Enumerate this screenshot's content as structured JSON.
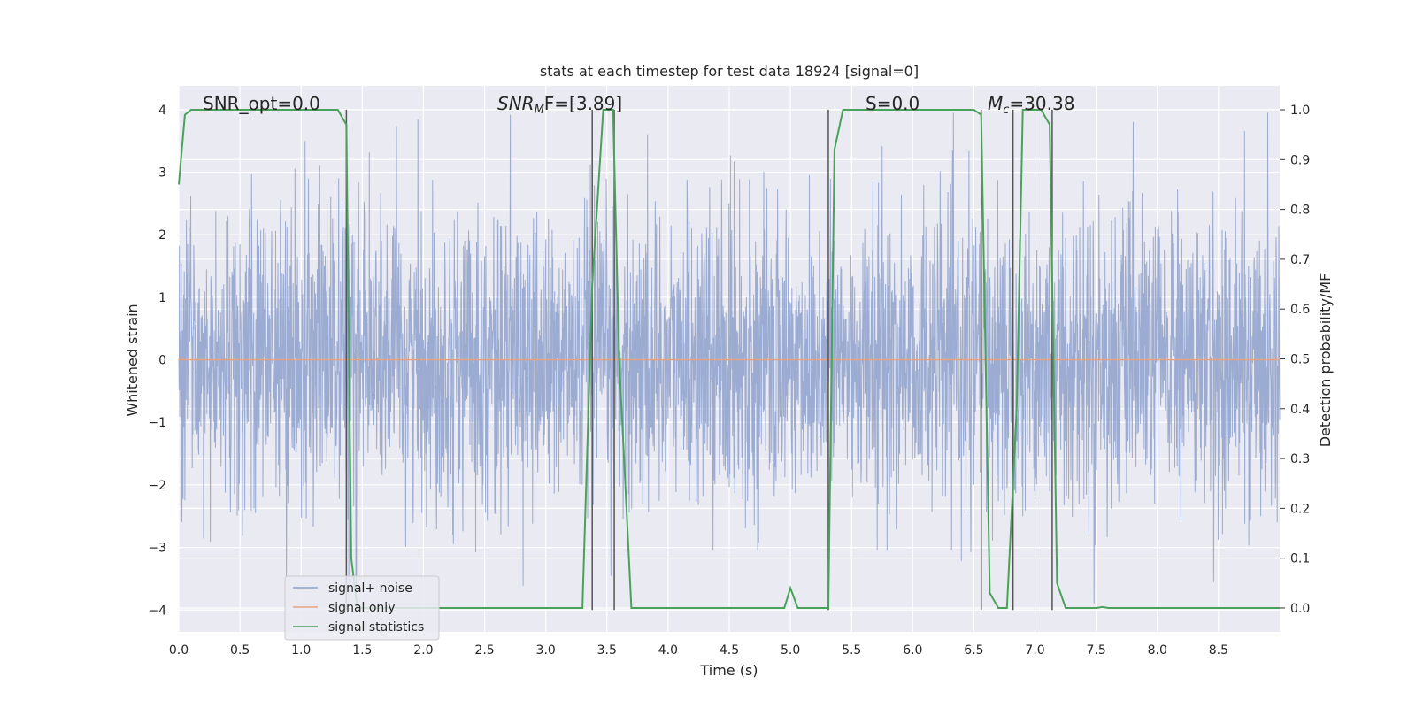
{
  "chart_data": {
    "type": "line",
    "title": "stats at each timestep for test data 18924 [signal=0]",
    "xlabel": "Time (s)",
    "ylabel_left": "Whitened strain",
    "ylabel_right": "Detection probability/MF",
    "xlim": [
      0,
      9.0
    ],
    "ylim_left": [
      -4.35,
      4.38
    ],
    "ylim_right": [
      -0.048,
      1.048
    ],
    "grid": true,
    "x_ticks": [
      0.0,
      0.5,
      1.0,
      1.5,
      2.0,
      2.5,
      3.0,
      3.5,
      4.0,
      4.5,
      5.0,
      5.5,
      6.0,
      6.5,
      7.0,
      7.5,
      8.0,
      8.5
    ],
    "x_tick_labels": [
      "0.0",
      "0.5",
      "1.0",
      "1.5",
      "2.0",
      "2.5",
      "3.0",
      "3.5",
      "4.0",
      "4.5",
      "5.0",
      "5.5",
      "6.0",
      "6.5",
      "7.0",
      "7.5",
      "8.0",
      "8.5"
    ],
    "y_left_ticks": [
      -4,
      -3,
      -2,
      -1,
      0,
      1,
      2,
      3,
      4
    ],
    "y_left_tick_labels": [
      "−4",
      "−3",
      "−2",
      "−1",
      "0",
      "1",
      "2",
      "3",
      "4"
    ],
    "y_right_ticks": [
      0.0,
      0.1,
      0.2,
      0.3,
      0.4,
      0.5,
      0.6,
      0.7,
      0.8,
      0.9,
      1.0
    ],
    "y_right_tick_labels": [
      "0.0",
      "0.1",
      "0.2",
      "0.3",
      "0.4",
      "0.5",
      "0.6",
      "0.7",
      "0.8",
      "0.9",
      "1.0"
    ],
    "annotations": [
      "SNR_opt=0.0",
      "SNR",
      "M",
      "F=[3.89]",
      "S=0.0",
      "M",
      "c",
      "=30.38"
    ],
    "legend": {
      "placement": "lower-left",
      "entries": [
        {
          "label": "signal+ noise",
          "color": "#8da0cb"
        },
        {
          "label": "signal only",
          "color": "#e8a07f"
        },
        {
          "label": "signal statistics",
          "color": "#4aa25a"
        }
      ]
    },
    "series": [
      {
        "name": "signal+ noise",
        "axis": "left",
        "color": "#8da0cb",
        "kind": "whitened noise trace (approx. N(0,1) per sample, peaks ≈ ±4)",
        "sample_rate_hz": 400,
        "duration_s": 9.0
      },
      {
        "name": "signal only",
        "axis": "left",
        "color": "#e8a07f",
        "x": [
          0.0,
          9.0
        ],
        "y": [
          0.0,
          0.0
        ]
      },
      {
        "name": "signal statistics",
        "axis": "right",
        "color": "#4aa25a",
        "x": [
          0.0,
          0.05,
          0.1,
          1.3,
          1.37,
          1.41,
          1.46,
          3.3,
          3.38,
          3.47,
          3.55,
          3.6,
          3.7,
          4.95,
          5.0,
          5.06,
          5.31,
          5.36,
          5.43,
          6.5,
          6.56,
          6.63,
          6.7,
          6.77,
          6.85,
          6.9,
          7.05,
          7.12,
          7.18,
          7.25,
          7.5,
          7.55,
          7.6,
          9.0
        ],
        "y": [
          0.85,
          0.99,
          1.0,
          1.0,
          0.97,
          0.1,
          0.0,
          0.0,
          0.65,
          1.0,
          1.0,
          0.5,
          0.0,
          0.0,
          0.04,
          0.0,
          0.0,
          0.92,
          1.0,
          1.0,
          0.99,
          0.03,
          0.0,
          0.0,
          0.4,
          1.0,
          1.0,
          0.97,
          0.05,
          0.0,
          0.0,
          0.002,
          0.0,
          0.0
        ]
      }
    ],
    "markers": {
      "kind": "vertical lines",
      "color": "#555555",
      "x": [
        1.37,
        3.38,
        3.56,
        5.31,
        6.56,
        6.82,
        7.14
      ],
      "y_top": 4.0,
      "y_bottom": -4.0
    }
  }
}
